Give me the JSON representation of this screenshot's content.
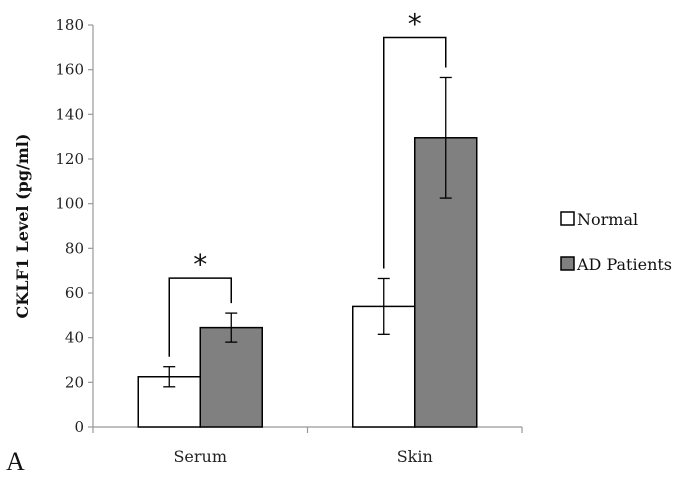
{
  "chart_data": {
    "type": "bar",
    "ylabel": "CKLF1 Level (pg/ml)",
    "ylim": [
      0,
      180
    ],
    "ytick_step": 20,
    "yticks": [
      "0",
      "20",
      "40",
      "60",
      "80",
      "100",
      "120",
      "140",
      "160",
      "180"
    ],
    "categories": [
      "Serum",
      "Skin"
    ],
    "series": [
      {
        "name": "Normal",
        "values": [
          22.5,
          54
        ],
        "errors": [
          4.5,
          12.5
        ],
        "color": "#ffffff"
      },
      {
        "name": "AD Patients",
        "values": [
          44.5,
          129.5
        ],
        "errors": [
          6.5,
          27
        ],
        "color": "#808080"
      }
    ],
    "significance": [
      {
        "category": "Serum",
        "label": "*"
      },
      {
        "category": "Skin",
        "label": "*"
      }
    ],
    "legend_position": "right",
    "grid": false,
    "panel_label": "A"
  }
}
